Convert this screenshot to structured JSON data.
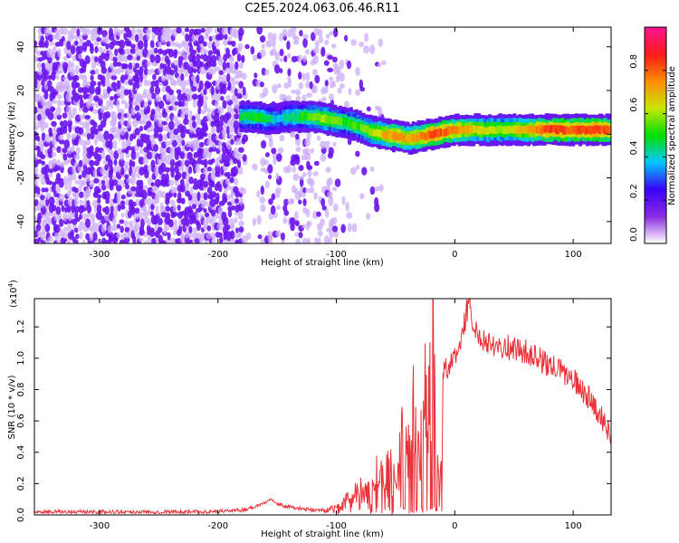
{
  "title": "C2E5.2024.063.06.46.R11",
  "colors": {
    "spectrum_speckle_dark": "#6a12ee",
    "spectrum_speckle_light": "#c9a6f7",
    "snr_line": "#e8333a",
    "frame": "#000000"
  },
  "chart_data": [
    {
      "type": "heatmap",
      "xlabel": "Height of straight line (km)",
      "ylabel": "Frequency (Hz)",
      "xlim": [
        -355,
        132
      ],
      "ylim": [
        -50,
        49
      ],
      "xticks": [
        -300,
        -200,
        -100,
        0,
        100
      ],
      "yticks": [
        -40,
        -20,
        0,
        20,
        40
      ],
      "xtick_labels": [
        "-300",
        "-200",
        "-100",
        "0",
        "100"
      ],
      "ytick_labels": [
        "-40",
        "-20",
        "0",
        "20",
        "40"
      ],
      "grid": false,
      "ridge": {
        "description_of_values": "peak frequency (Hz) vs height (km)",
        "x": [
          -182,
          -170,
          -160,
          -150,
          -140,
          -130,
          -120,
          -110,
          -100,
          -90,
          -80,
          -70,
          -60,
          -50,
          -40,
          -30,
          -20,
          -10,
          0,
          20,
          40,
          60,
          80,
          100,
          120,
          132
        ],
        "y": [
          8,
          8,
          7,
          7,
          8,
          8,
          8,
          7,
          6,
          5,
          3,
          1,
          0,
          -1,
          -2,
          -1,
          0,
          1,
          2,
          2,
          2,
          2,
          2,
          2,
          2,
          2
        ],
        "peak_amplitude": [
          0.45,
          0.5,
          0.45,
          0.35,
          0.45,
          0.5,
          0.55,
          0.6,
          0.55,
          0.5,
          0.55,
          0.6,
          0.7,
          0.75,
          0.7,
          0.75,
          0.85,
          0.8,
          0.75,
          0.65,
          0.6,
          0.7,
          0.85,
          0.8,
          0.85,
          0.8
        ]
      },
      "colorbar": {
        "label": "Normalized spectral amplitude",
        "range": [
          0.0,
          1.0
        ],
        "ticks": [
          0.0,
          0.2,
          0.4,
          0.6,
          0.8
        ],
        "tick_labels": [
          "0.0",
          "0.2",
          "0.4",
          "0.6",
          "0.8"
        ],
        "stops": [
          "#ffffff",
          "#8a2be2",
          "#3a00ff",
          "#00c8ff",
          "#00e000",
          "#c8e600",
          "#ff8c00",
          "#ff1a1a",
          "#ff1493"
        ]
      }
    },
    {
      "type": "line",
      "xlabel": "Height of straight line (km)",
      "ylabel": "SNR (10 * v/v)",
      "multiplier_label": "(x10",
      "multiplier_exponent": "4",
      "xlim": [
        -355,
        132
      ],
      "ylim": [
        0,
        1.38
      ],
      "xticks": [
        -300,
        -200,
        -100,
        0,
        100
      ],
      "yticks": [
        0.0,
        0.2,
        0.4,
        0.6,
        0.8,
        1.0,
        1.2
      ],
      "xtick_labels": [
        "-300",
        "-200",
        "-100",
        "0",
        "100"
      ],
      "ytick_labels": [
        "0.0",
        "0.2",
        "0.4",
        "0.6",
        "0.8",
        "1.0",
        "1.2"
      ],
      "grid": false,
      "series": [
        {
          "x": [
            -355,
            -330,
            -300,
            -270,
            -240,
            -210,
            -180,
            -170,
            -160,
            -155,
            -150,
            -140,
            -130,
            -120,
            -110,
            -100,
            -95,
            -90,
            -85,
            -80,
            -75,
            -70,
            -65,
            -60,
            -55,
            -50,
            -45,
            -40,
            -35,
            -30,
            -25,
            -20,
            -18,
            -15,
            -13,
            -10,
            -5,
            0,
            5,
            10,
            13,
            15,
            20,
            25,
            30,
            40,
            50,
            60,
            70,
            80,
            90,
            100,
            110,
            120,
            125,
            132
          ],
          "y": [
            0.02,
            0.02,
            0.02,
            0.02,
            0.02,
            0.02,
            0.03,
            0.05,
            0.08,
            0.11,
            0.07,
            0.05,
            0.04,
            0.03,
            0.03,
            0.04,
            0.07,
            0.1,
            0.14,
            0.2,
            0.12,
            0.18,
            0.28,
            0.2,
            0.32,
            0.24,
            0.45,
            0.35,
            0.62,
            0.3,
            0.72,
            0.85,
            1.38,
            0.55,
            0.05,
            0.9,
            0.95,
            1.0,
            1.1,
            1.3,
            1.38,
            1.2,
            1.15,
            1.12,
            1.1,
            1.08,
            1.06,
            1.04,
            1.0,
            0.95,
            0.92,
            0.86,
            0.78,
            0.68,
            0.6,
            0.52
          ]
        }
      ]
    }
  ]
}
